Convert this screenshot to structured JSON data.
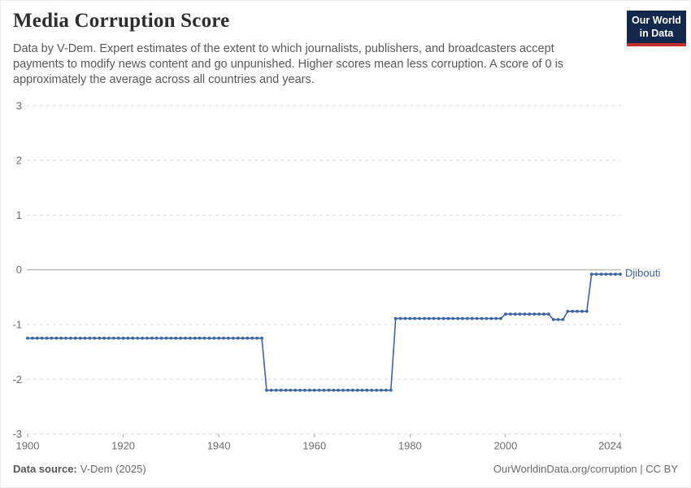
{
  "header": {
    "title": "Media Corruption Score",
    "subtitle": "Data by V-Dem. Expert estimates of the extent to which journalists, publishers, and broadcasters accept payments to modify news content and go unpunished. Higher scores mean less corruption. A score of 0 is approximately the average across all countries and years.",
    "logo": {
      "line1": "Our World",
      "line2": "in Data",
      "bg_color": "#12294d",
      "accent_color": "#c42f2a"
    }
  },
  "chart_data": {
    "type": "line",
    "title": "Media Corruption Score",
    "xlabel": "",
    "ylabel": "",
    "xlim": [
      1900,
      2024
    ],
    "ylim": [
      -3,
      3
    ],
    "x_ticks": [
      1900,
      1920,
      1940,
      1960,
      1980,
      2000,
      2024
    ],
    "y_ticks": [
      3,
      2,
      1,
      0,
      -1,
      -2,
      -3
    ],
    "grid": "horizontal-dashed, zero-line-solid",
    "legend_position": "end-of-line-label",
    "line_color": "#3e63a7",
    "marker": "circle-every-year",
    "series": [
      {
        "name": "Djibouti",
        "segments": [
          {
            "start_year": 1900,
            "end_year": 1949,
            "value": -1.25
          },
          {
            "start_year": 1950,
            "end_year": 1976,
            "value": -2.2
          },
          {
            "start_year": 1977,
            "end_year": 1999,
            "value": -0.89
          },
          {
            "start_year": 2000,
            "end_year": 2009,
            "value": -0.81
          },
          {
            "start_year": 2010,
            "end_year": 2012,
            "value": -0.91
          },
          {
            "start_year": 2013,
            "end_year": 2017,
            "value": -0.76
          },
          {
            "start_year": 2018,
            "end_year": 2024,
            "value": -0.08
          }
        ]
      }
    ],
    "end_label": "Djibouti"
  },
  "footer": {
    "source_label": "Data source:",
    "source_value": "V-Dem (2025)",
    "credit": "OurWorldinData.org/corruption | CC BY"
  }
}
